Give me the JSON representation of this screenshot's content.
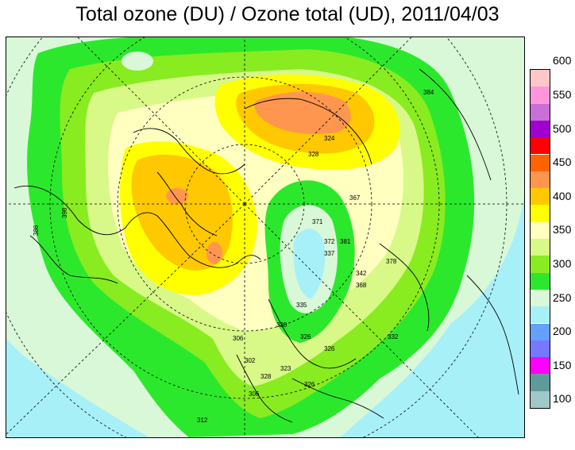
{
  "title": "Total ozone (DU) / Ozone total (UD), 2011/04/03",
  "legend": {
    "levels": [
      {
        "label": "100",
        "color": "#a0c8c8"
      },
      {
        "label": "150",
        "color": "#5f9a9a"
      },
      {
        "label": "200",
        "color": "#ff00ff"
      },
      {
        "label": "250",
        "color": "#7878ff"
      },
      {
        "label": "300",
        "color": "#64a0ff"
      },
      {
        "label": "350",
        "color": "#a8f0f8"
      },
      {
        "label": "400",
        "color": "#d8f8d8"
      },
      {
        "label": "450",
        "color": "#2ce82c"
      },
      {
        "label": "500",
        "color": "#88ec20"
      },
      {
        "label": "550",
        "color": "#d8f888"
      },
      {
        "label": "600",
        "color": "#ffffc0"
      },
      {
        "label": "",
        "color": "#ffff00"
      },
      {
        "label": "",
        "color": "#ffc800"
      },
      {
        "label": "",
        "color": "#ff9650"
      },
      {
        "label": "",
        "color": "#ff6400"
      },
      {
        "label": "",
        "color": "#ff0000"
      },
      {
        "label": "",
        "color": "#a000d0"
      },
      {
        "label": "",
        "color": "#c870d8"
      },
      {
        "label": "",
        "color": "#ff96dc"
      },
      {
        "label": "",
        "color": "#ffc8c8"
      }
    ]
  },
  "contour_labels": [
    "386",
    "398",
    "306",
    "328",
    "371",
    "367",
    "372",
    "337",
    "378",
    "381",
    "342",
    "368",
    "335",
    "330",
    "326",
    "302",
    "328",
    "323",
    "306",
    "326",
    "332",
    "326",
    "384",
    "324",
    "312"
  ]
}
